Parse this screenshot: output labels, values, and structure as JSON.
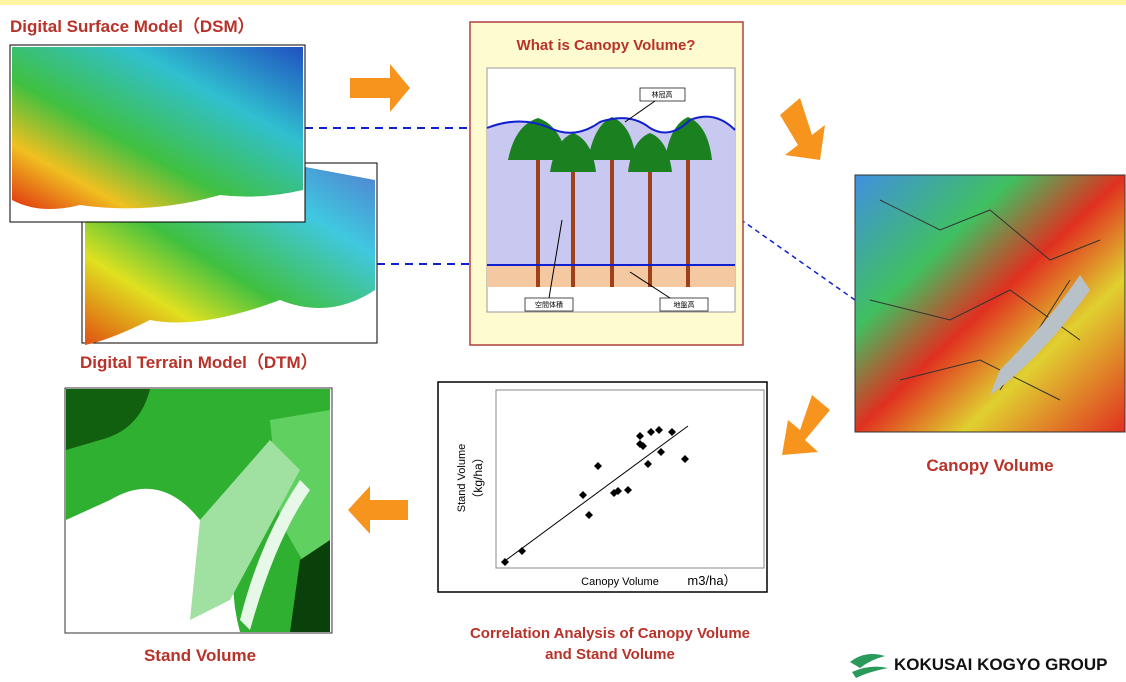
{
  "dsm": {
    "label": "Digital Surface Model（DSM）"
  },
  "dtm": {
    "label": "Digital Terrain Model（DTM）"
  },
  "concept": {
    "title": "What is Canopy Volume?",
    "canopy_height": "林冠高",
    "space_volume": "空間体積",
    "ground_height": "地盤高"
  },
  "canopy_map": {
    "label": "Canopy Volume"
  },
  "correlation": {
    "y_label": "Stand Volume",
    "y_unit": "（kg/ha）",
    "x_label": "Canopy Volume",
    "x_unit": "m3/ha）",
    "caption_line1": "Correlation Analysis of Canopy Volume",
    "caption_line2": "and Stand Volume"
  },
  "stand_map": {
    "label": "Stand Volume"
  },
  "logo": {
    "text": "KOKUSAI KOGYO GROUP"
  }
}
